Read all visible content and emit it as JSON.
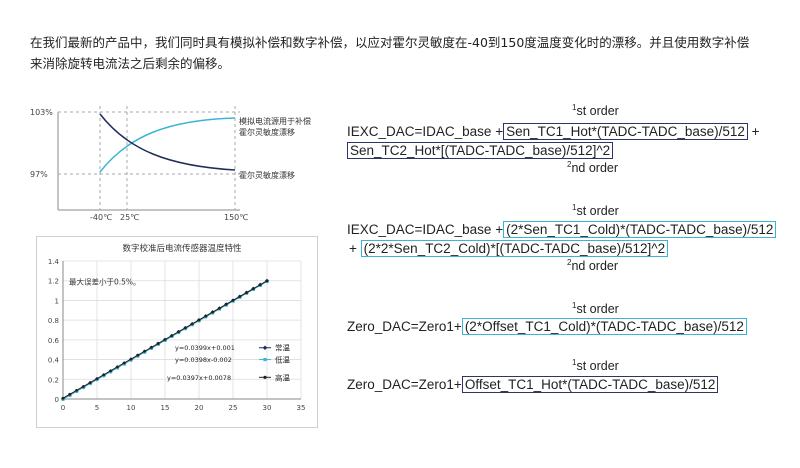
{
  "intro": {
    "line1": "在我们最新的产品中，我们同时具有模拟补偿和数字补偿，以应对霍尔灵敏度在-40到150度温度变化时的漂移。并且使用数字补偿",
    "line2": "来消除旋转电流法之后剩余的偏移。"
  },
  "drift_diagram": {
    "y_top_label": "103%",
    "y_bottom_label": "97%",
    "x_labels": [
      "-40℃",
      "25℃",
      "150℃"
    ],
    "rising_label_line1": "模拟电流源用于补偿",
    "rising_label_line2": "霍尔灵敏度漂移",
    "falling_label": "霍尔灵敏度漂移",
    "colors": {
      "rising": "#3ab4d6",
      "falling": "#1f2d5a"
    }
  },
  "chart_data": {
    "type": "scatter",
    "title": "数字校准后电流传感器温度特性",
    "annotation": "最大误差小于0.5%。",
    "xlim": [
      0,
      35
    ],
    "ylim": [
      0,
      1.4
    ],
    "x_ticks": [
      0,
      5,
      10,
      15,
      20,
      25,
      30,
      35
    ],
    "y_ticks": [
      0,
      0.2,
      0.4,
      0.6,
      0.8,
      1.0,
      1.2,
      1.4
    ],
    "grid": true,
    "legend_position": "right",
    "series": [
      {
        "name": "常温",
        "equation": "y=0.0399x+0.001",
        "slope": 0.0399,
        "intercept": 0.001,
        "color": "#1f2d5a",
        "marker": "diamond"
      },
      {
        "name": "低温",
        "equation": "y=0.0398x-0.002",
        "slope": 0.0398,
        "intercept": -0.002,
        "color": "#3ab4d6",
        "marker": "square"
      },
      {
        "name": "高温",
        "equation": "y=0.0397x+0.0078",
        "slope": 0.0397,
        "intercept": 0.0078,
        "color": "#222222",
        "marker": "circle"
      }
    ],
    "x_points": [
      0,
      1,
      2,
      3,
      4,
      5,
      6,
      7,
      8,
      9,
      10,
      11,
      12,
      13,
      14,
      15,
      16,
      17,
      18,
      19,
      20,
      21,
      22,
      23,
      24,
      25,
      26,
      27,
      28,
      29,
      30
    ]
  },
  "equations": {
    "eq1": {
      "order_top": "1",
      "order_top_suffix": "st order",
      "prefix": "IEXC_DAC=IDAC_base +",
      "part1": "Sen_TC1_Hot*(TADC-TADC_base)/512",
      "tail1": " +",
      "part2": "Sen_TC2_Hot*[(TADC-TADC_base)/512]^2",
      "order_bottom": "2",
      "order_bottom_suffix": "nd order"
    },
    "eq2": {
      "order_top": "1",
      "order_top_suffix": "st order",
      "prefix": "IEXC_DAC=IDAC_base +",
      "part1": "(2*Sen_TC1_Cold)*(TADC-TADC_base)/512",
      "lead2": "+ ",
      "part2": "(2*2*Sen_TC2_Cold)*[(TADC-TADC_base)/512]^2",
      "order_bottom": "2",
      "order_bottom_suffix": "nd order"
    },
    "eq3": {
      "order_top": "1",
      "order_top_suffix": "st order",
      "prefix": "Zero_DAC=Zero1+",
      "part1": "(2*Offset_TC1_Cold)*(TADC-TADC_base)/512"
    },
    "eq4": {
      "order_top": "1",
      "order_top_suffix": "st order",
      "prefix": "Zero_DAC=Zero1+",
      "part1": "Offset_TC1_Hot*(TADC-TADC_base)/512"
    }
  }
}
